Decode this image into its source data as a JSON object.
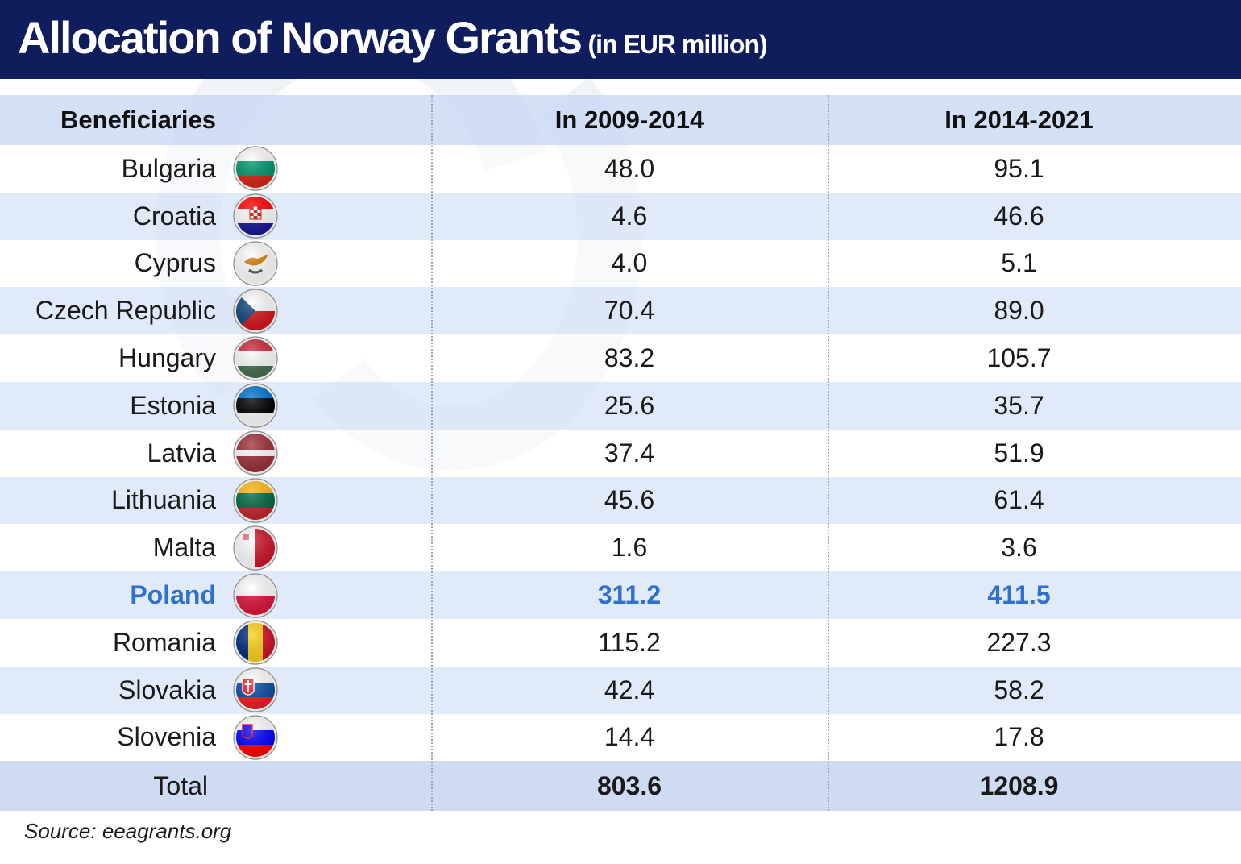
{
  "header": {
    "title": "Allocation of Norway Grants",
    "subtitle": "(in EUR million)"
  },
  "chart_data": {
    "type": "table",
    "title": "Allocation of Norway Grants",
    "subtitle": "(in EUR million)",
    "columns": [
      "Beneficiaries",
      "In 2009-2014",
      "In 2014-2021"
    ],
    "rows": [
      {
        "country": "Bulgaria",
        "flag": "bulgaria-flag-icon",
        "v2009": "48.0",
        "v2014": "95.1"
      },
      {
        "country": "Croatia",
        "flag": "croatia-flag-icon",
        "v2009": "4.6",
        "v2014": "46.6"
      },
      {
        "country": "Cyprus",
        "flag": "cyprus-flag-icon",
        "v2009": "4.0",
        "v2014": "5.1"
      },
      {
        "country": "Czech Republic",
        "flag": "czech-republic-flag-icon",
        "v2009": "70.4",
        "v2014": "89.0"
      },
      {
        "country": "Hungary",
        "flag": "hungary-flag-icon",
        "v2009": "83.2",
        "v2014": "105.7"
      },
      {
        "country": "Estonia",
        "flag": "estonia-flag-icon",
        "v2009": "25.6",
        "v2014": "35.7"
      },
      {
        "country": "Latvia",
        "flag": "latvia-flag-icon",
        "v2009": "37.4",
        "v2014": "51.9"
      },
      {
        "country": "Lithuania",
        "flag": "lithuania-flag-icon",
        "v2009": "45.6",
        "v2014": "61.4"
      },
      {
        "country": "Malta",
        "flag": "malta-flag-icon",
        "v2009": "1.6",
        "v2014": "3.6"
      },
      {
        "country": "Poland",
        "flag": "poland-flag-icon",
        "v2009": "311.2",
        "v2014": "411.5",
        "highlight": true
      },
      {
        "country": "Romania",
        "flag": "romania-flag-icon",
        "v2009": "115.2",
        "v2014": "227.3"
      },
      {
        "country": "Slovakia",
        "flag": "slovakia-flag-icon",
        "v2009": "42.4",
        "v2014": "58.2"
      },
      {
        "country": "Slovenia",
        "flag": "slovenia-flag-icon",
        "v2009": "14.4",
        "v2014": "17.8"
      }
    ],
    "total": {
      "label": "Total",
      "v2009": "803.6",
      "v2014": "1208.9"
    }
  },
  "colors": {
    "header_bg": "#0f1d5c",
    "highlight": "#2e6fcf",
    "row_shade": "#d6e2f6"
  },
  "source": "Source: eeagrants.org"
}
